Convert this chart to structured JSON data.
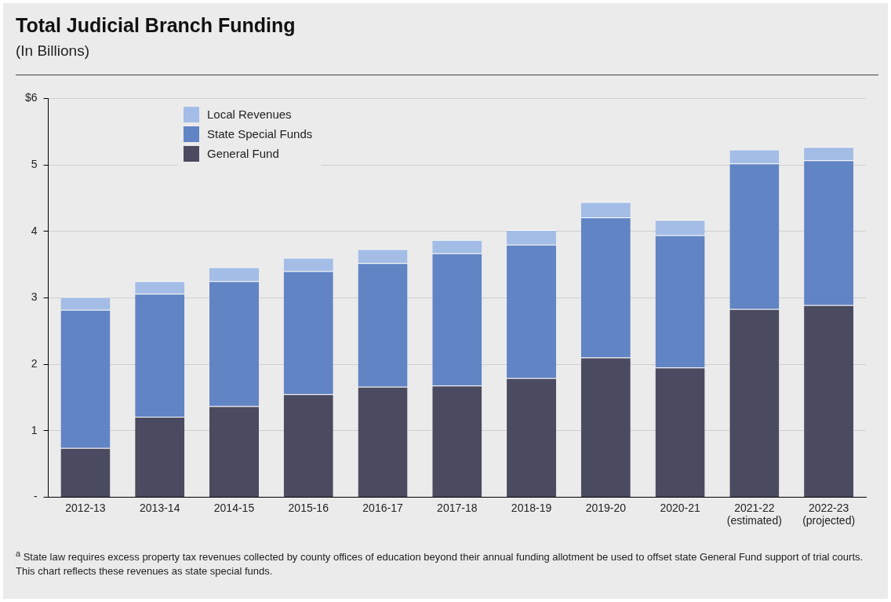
{
  "chart_data": {
    "type": "bar",
    "title": "Total Judicial Branch Funding",
    "subtitle": "(In Billions)",
    "categories": [
      "2012-13",
      "2013-14",
      "2014-15",
      "2015-16",
      "2016-17",
      "2017-18",
      "2018-19",
      "2019-20",
      "2020-21",
      "2021-22\n(estimated)",
      "2022-23\n(projected)"
    ],
    "stacked": true,
    "series": [
      {
        "name": "General Fund",
        "color": "#4a4a60",
        "values": [
          0.74,
          1.21,
          1.37,
          1.55,
          1.66,
          1.68,
          1.79,
          2.1,
          1.95,
          2.83,
          2.89
        ]
      },
      {
        "name": "State Special Funds",
        "color": "#6184c4",
        "values": [
          2.08,
          1.85,
          1.88,
          1.85,
          1.86,
          1.99,
          2.01,
          2.11,
          1.99,
          2.19,
          2.18
        ]
      },
      {
        "name": "Local Revenues",
        "color": "#a3bde6",
        "values": [
          0.19,
          0.19,
          0.21,
          0.2,
          0.21,
          0.2,
          0.22,
          0.23,
          0.23,
          0.21,
          0.2
        ]
      }
    ],
    "ylim": [
      0,
      6
    ],
    "yticks": [
      {
        "value": 0,
        "label": "-"
      },
      1,
      2,
      3,
      4,
      5,
      {
        "value": 6,
        "label": "$6"
      }
    ],
    "grid": "y",
    "legend": "top left",
    "annotations": [
      "$^{a}$ State law requires excess property tax revenues collected by county offices of education beyond their annual funding allotment be used to offset state General Fund support of trial courts. This chart reflects these revenues as state special funds."
    ]
  }
}
